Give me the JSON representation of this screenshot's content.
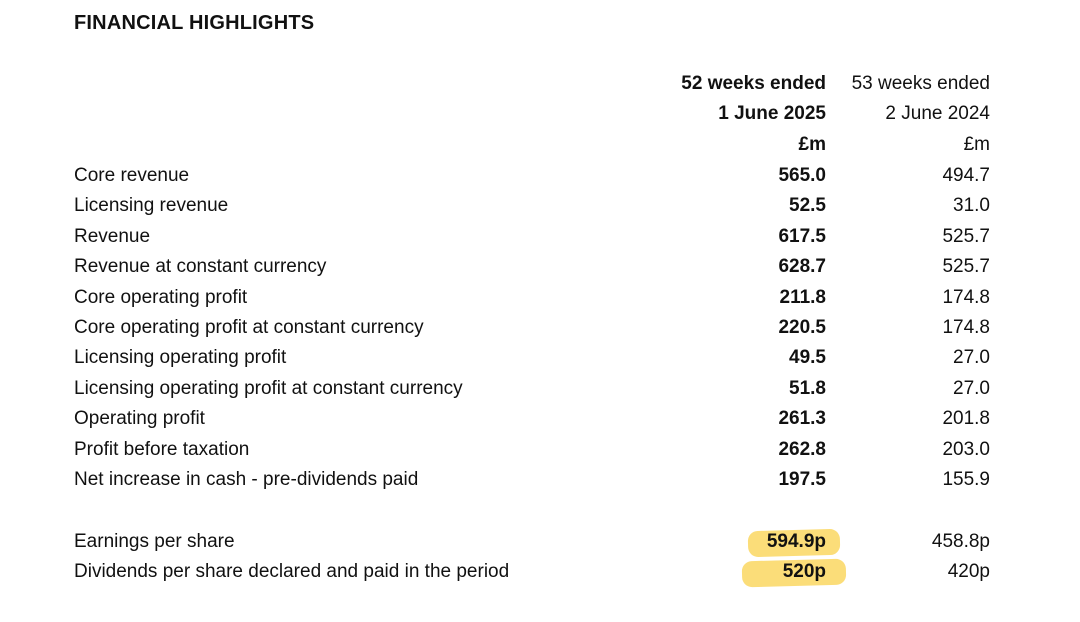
{
  "document": {
    "title": "FINANCIAL HIGHLIGHTS",
    "columns": {
      "current": {
        "line1": "52 weeks ended",
        "line2": "1 June 2025",
        "unit": "£m"
      },
      "previous": {
        "line1": "53 weeks ended",
        "line2": "2 June 2024",
        "unit": "£m"
      }
    },
    "rows": [
      {
        "label": "Core revenue",
        "current": "565.0",
        "previous": "494.7"
      },
      {
        "label": "Licensing revenue",
        "current": "52.5",
        "previous": "31.0"
      },
      {
        "label": "Revenue",
        "current": "617.5",
        "previous": "525.7"
      },
      {
        "label": "Revenue at constant currency",
        "current": "628.7",
        "previous": "525.7"
      },
      {
        "label": "Core operating profit",
        "current": "211.8",
        "previous": "174.8"
      },
      {
        "label": "Core operating profit at constant currency",
        "current": "220.5",
        "previous": "174.8"
      },
      {
        "label": "Licensing operating profit",
        "current": "49.5",
        "previous": "27.0"
      },
      {
        "label": "Licensing operating profit at constant currency",
        "current": "51.8",
        "previous": "27.0"
      },
      {
        "label": "Operating profit",
        "current": "261.3",
        "previous": "201.8"
      },
      {
        "label": "Profit before taxation",
        "current": "262.8",
        "previous": "203.0"
      },
      {
        "label": "Net increase in cash - pre-dividends paid",
        "current": "197.5",
        "previous": "155.9"
      }
    ],
    "per_share_rows": [
      {
        "label": "Earnings per share",
        "current": "594.9p",
        "previous": "458.8p",
        "highlighted": true
      },
      {
        "label": "Dividends per share declared and paid in the period",
        "current": "520p",
        "previous": "420p",
        "highlighted": true
      }
    ],
    "highlight_color": "#fbd96a"
  }
}
